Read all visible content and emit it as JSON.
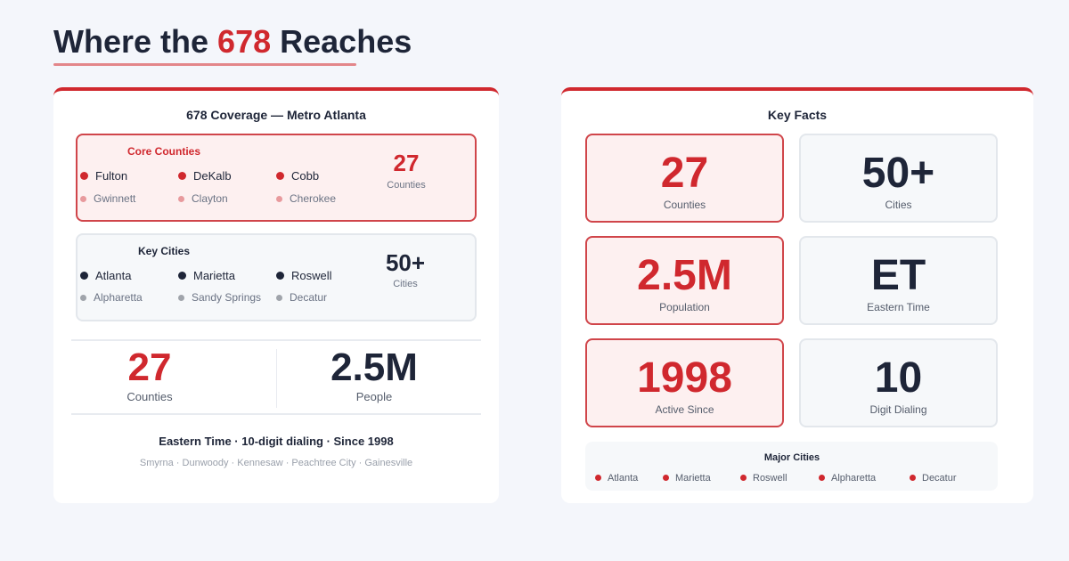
{
  "header": {
    "title_before": "Where the",
    "title_highlight": "678",
    "title_after": "Reaches"
  },
  "coverage": {
    "title": "678 Coverage — Metro Atlanta",
    "core": {
      "title": "Core Counties",
      "primary": [
        "Fulton",
        "DeKalb",
        "Cobb"
      ],
      "secondary": [
        "Gwinnett",
        "Clayton",
        "Cherokee"
      ],
      "stat": "27",
      "stat_label": "Counties"
    },
    "cities": {
      "title": "Key Cities",
      "primary": [
        "Atlanta",
        "Marietta",
        "Roswell"
      ],
      "secondary": [
        "Alpharetta",
        "Sandy Springs",
        "Decatur"
      ],
      "stat": "50+",
      "stat_label": "Cities"
    },
    "stats": [
      {
        "value": "27",
        "label": "Counties"
      },
      {
        "value": "2.5M",
        "label": "People"
      }
    ],
    "tagline": "Eastern Time · 10-digit dialing · Since 1998",
    "more_places": "Smyrna · Dunwoody · Kennesaw · Peachtree City · Gainesville"
  },
  "facts": {
    "title": "Key Facts",
    "cards": [
      {
        "value": "27",
        "label": "Counties"
      },
      {
        "value": "50+",
        "label": "Cities"
      },
      {
        "value": "2.5M",
        "label": "Population"
      },
      {
        "value": "ET",
        "label": "Eastern Time"
      },
      {
        "value": "1998",
        "label": "Active Since"
      },
      {
        "value": "10",
        "label": "Digit Dialing"
      }
    ],
    "major_cities": {
      "title": "Major Cities",
      "items": [
        "Atlanta",
        "Marietta",
        "Roswell",
        "Alpharetta",
        "Decatur"
      ]
    }
  }
}
